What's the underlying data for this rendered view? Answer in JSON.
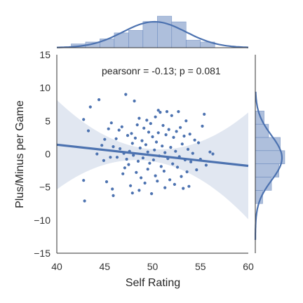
{
  "chart_data": {
    "type": "scatter",
    "kind": "jointplot-regression",
    "title": "",
    "xlabel": "Self Rating",
    "ylabel": "Plus/Minus per Game",
    "xlim": [
      40,
      60
    ],
    "ylim": [
      -15,
      15
    ],
    "xticks": [
      40,
      45,
      50,
      55,
      60
    ],
    "yticks": [
      -15,
      -10,
      -5,
      0,
      5,
      10,
      15
    ],
    "annotation": "pearsonr = -0.13; p = 0.081",
    "grid": false,
    "colors": {
      "main": "#4c72b0",
      "band": "#c8d3e6",
      "hist_fill": "#aebfdc",
      "axis": "#333333"
    },
    "regression": {
      "x": [
        40,
        60
      ],
      "y": [
        1.4,
        -1.8
      ]
    },
    "points": [
      [
        42.8,
        5.2
      ],
      [
        42.8,
        -4.0
      ],
      [
        42.9,
        -7.1
      ],
      [
        43.3,
        3.5
      ],
      [
        43.5,
        7.1
      ],
      [
        44.2,
        0.0
      ],
      [
        44.4,
        8.2
      ],
      [
        44.7,
        1.3
      ],
      [
        44.9,
        -1.0
      ],
      [
        45.0,
        2.2
      ],
      [
        45.2,
        -4.2
      ],
      [
        45.4,
        3.8
      ],
      [
        45.6,
        -0.5
      ],
      [
        45.7,
        4.7
      ],
      [
        45.8,
        -5.3
      ],
      [
        45.9,
        -6.3
      ],
      [
        45.9,
        1.1
      ],
      [
        46.2,
        2.3
      ],
      [
        46.3,
        -0.5
      ],
      [
        46.5,
        3.6
      ],
      [
        46.6,
        0.8
      ],
      [
        46.8,
        4.1
      ],
      [
        46.9,
        -3.0
      ],
      [
        47.0,
        0.1
      ],
      [
        47.1,
        -2.1
      ],
      [
        47.2,
        9.0
      ],
      [
        47.3,
        -0.8
      ],
      [
        47.4,
        2.8
      ],
      [
        47.5,
        -1.6
      ],
      [
        47.6,
        0.4
      ],
      [
        47.7,
        -4.8
      ],
      [
        47.8,
        3.1
      ],
      [
        47.9,
        -5.9
      ],
      [
        47.9,
        1.6
      ],
      [
        48.0,
        -0.2
      ],
      [
        48.1,
        8.0
      ],
      [
        48.2,
        2.4
      ],
      [
        48.3,
        -2.8
      ],
      [
        48.4,
        4.4
      ],
      [
        48.5,
        -1.1
      ],
      [
        48.6,
        5.4
      ],
      [
        48.6,
        -5.5
      ],
      [
        48.7,
        0.9
      ],
      [
        48.8,
        -3.6
      ],
      [
        48.9,
        2.0
      ],
      [
        49.0,
        -0.6
      ],
      [
        49.1,
        3.9
      ],
      [
        49.2,
        -4.4
      ],
      [
        49.3,
        1.4
      ],
      [
        49.4,
        5.1
      ],
      [
        49.5,
        -2.3
      ],
      [
        49.5,
        0.3
      ],
      [
        49.6,
        3.3
      ],
      [
        49.7,
        -1.4
      ],
      [
        49.8,
        4.6
      ],
      [
        49.9,
        -6.0
      ],
      [
        50.0,
        2.6
      ],
      [
        50.1,
        -0.9
      ],
      [
        50.2,
        0.6
      ],
      [
        50.3,
        5.6
      ],
      [
        50.3,
        -3.3
      ],
      [
        50.4,
        1.8
      ],
      [
        50.5,
        -4.1
      ],
      [
        50.6,
        3.2
      ],
      [
        50.7,
        -0.3
      ],
      [
        50.8,
        6.3
      ],
      [
        50.9,
        -1.9
      ],
      [
        51.0,
        1.2
      ],
      [
        51.1,
        4.3
      ],
      [
        51.2,
        -2.6
      ],
      [
        51.3,
        0.2
      ],
      [
        51.3,
        -5.1
      ],
      [
        51.4,
        2.9
      ],
      [
        51.5,
        6.4
      ],
      [
        51.6,
        -0.7
      ],
      [
        51.7,
        3.7
      ],
      [
        51.8,
        -3.9
      ],
      [
        51.9,
        1.0
      ],
      [
        52.0,
        5.8
      ],
      [
        52.1,
        -1.5
      ],
      [
        52.2,
        2.5
      ],
      [
        52.3,
        -4.6
      ],
      [
        52.4,
        0.4
      ],
      [
        52.5,
        3.4
      ],
      [
        52.6,
        -2.0
      ],
      [
        52.7,
        6.4
      ],
      [
        52.8,
        -0.4
      ],
      [
        52.9,
        4.0
      ],
      [
        53.0,
        -3.4
      ],
      [
        53.1,
        1.5
      ],
      [
        53.2,
        -5.2
      ],
      [
        53.3,
        2.7
      ],
      [
        53.4,
        -0.9
      ],
      [
        53.5,
        5.0
      ],
      [
        53.6,
        -2.7
      ],
      [
        53.7,
        0.7
      ],
      [
        53.8,
        -4.9
      ],
      [
        53.9,
        3.0
      ],
      [
        54.0,
        -1.2
      ],
      [
        54.2,
        0.1
      ],
      [
        54.4,
        2.1
      ],
      [
        54.6,
        -2.4
      ],
      [
        54.8,
        1.7
      ],
      [
        55.0,
        -0.8
      ],
      [
        55.2,
        4.2
      ],
      [
        55.4,
        6.0
      ],
      [
        55.6,
        -1.7
      ],
      [
        56.0,
        0.3
      ],
      [
        56.3,
        0.0
      ],
      [
        50.6,
        6.6
      ]
    ],
    "top_histogram": {
      "bin_edges": [
        41.5,
        43,
        44.5,
        46,
        47.5,
        49,
        50.5,
        52,
        53.5,
        55,
        56.5
      ],
      "heights": [
        0.12,
        0.18,
        0.28,
        0.47,
        0.55,
        0.83,
        1.0,
        0.82,
        0.24,
        0.18
      ]
    },
    "right_histogram": {
      "bin_edges": [
        -7.5,
        -5.5,
        -3.5,
        -1.5,
        0.5,
        2.5,
        4.5,
        6.5
      ],
      "heights": [
        0.25,
        0.55,
        0.8,
        1.0,
        0.85,
        0.45,
        0.3
      ]
    }
  }
}
